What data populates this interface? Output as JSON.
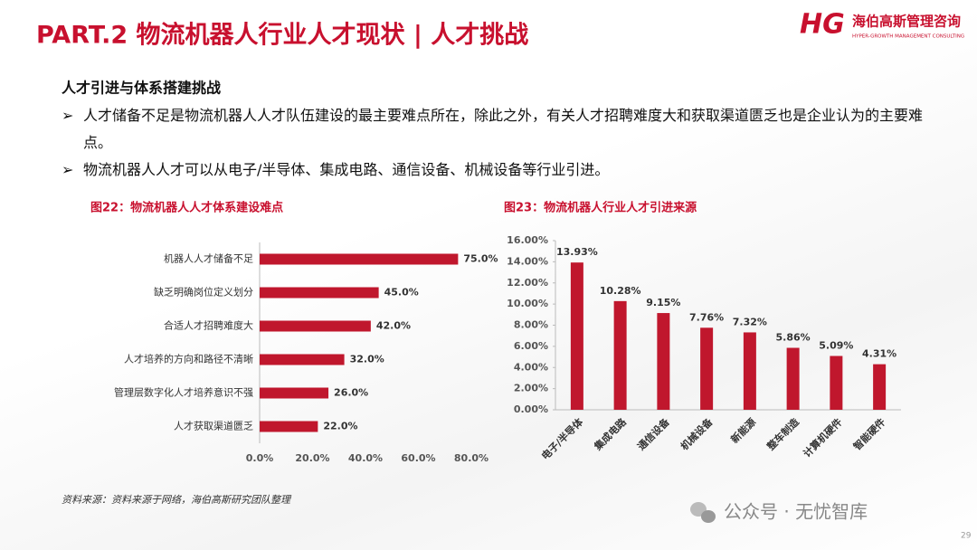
{
  "header": {
    "title": "PART.2 物流机器人行业人才现状 | 人才挑战",
    "logo_mark": "HG",
    "logo_cn": "海伯高斯管理咨询",
    "logo_en": "HYPER-GROWTH MANAGEMENT CONSULTING"
  },
  "section": {
    "heading": "人才引进与体系搭建挑战",
    "bullets": [
      "人才储备不足是物流机器人人才队伍建设的最主要难点所在，除此之外，有关人才招聘难度大和获取渠道匮乏也是企业认为的主要难点。",
      "物流机器人人才可以从电子/半导体、集成电路、通信设备、机械设备等行业引进。"
    ]
  },
  "chart_data": [
    {
      "type": "bar",
      "orientation": "horizontal",
      "title": "图22：物流机器人人才体系建设难点",
      "categories": [
        "机器人人才储备不足",
        "缺乏明确岗位定义划分",
        "合适人才招聘难度大",
        "人才培养的方向和路径不清晰",
        "管理层数字化人才培养意识不强",
        "人才获取渠道匮乏"
      ],
      "values": [
        75.0,
        45.0,
        42.0,
        32.0,
        26.0,
        22.0
      ],
      "value_labels": [
        "75.0%",
        "45.0%",
        "42.0%",
        "32.0%",
        "26.0%",
        "22.0%"
      ],
      "color": "#c0172d",
      "xlim": [
        0,
        80
      ],
      "xticks": [
        {
          "value": 0,
          "label": "0.0%"
        },
        {
          "value": 20,
          "label": "20.0%"
        },
        {
          "value": 40,
          "label": "40.0%"
        },
        {
          "value": 60,
          "label": "60.0%"
        },
        {
          "value": 80,
          "label": "80.0%"
        }
      ]
    },
    {
      "type": "bar",
      "orientation": "vertical",
      "title": "图23：物流机器人行业人才引进来源",
      "categories": [
        "电子/半导体",
        "集成电路",
        "通信设备",
        "机械设备",
        "新能源",
        "整车制造",
        "计算机硬件",
        "智能硬件"
      ],
      "values": [
        13.93,
        10.28,
        9.15,
        7.76,
        7.32,
        5.86,
        5.09,
        4.31
      ],
      "value_labels": [
        "13.93%",
        "10.28%",
        "9.15%",
        "7.76%",
        "7.32%",
        "5.86%",
        "5.09%",
        "4.31%"
      ],
      "color": "#c0172d",
      "ylim": [
        0,
        16
      ],
      "yticks": [
        {
          "value": 0,
          "label": "0.00%"
        },
        {
          "value": 2,
          "label": "2.00%"
        },
        {
          "value": 4,
          "label": "4.00%"
        },
        {
          "value": 6,
          "label": "6.00%"
        },
        {
          "value": 8,
          "label": "8.00%"
        },
        {
          "value": 10,
          "label": "10.00%"
        },
        {
          "value": 12,
          "label": "12.00%"
        },
        {
          "value": 14,
          "label": "14.00%"
        },
        {
          "value": 16,
          "label": "16.00%"
        }
      ]
    }
  ],
  "source": "资料来源：资料来源于网络，海伯高斯研究团队整理",
  "watermark": "公众号 · 无忧智库",
  "page_number": 29
}
